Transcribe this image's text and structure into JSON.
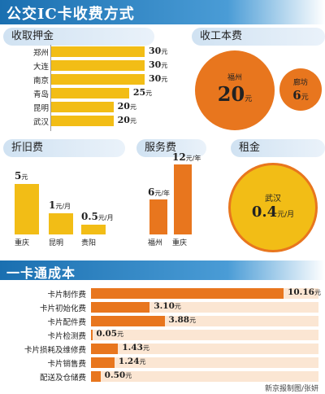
{
  "title": "公交IC卡收费方式",
  "colors": {
    "yellow": "#f2bd16",
    "orange": "#e8761e",
    "blue": "#1a6fb0",
    "pale_orange": "#fbe6d3"
  },
  "deposit": {
    "heading": "收取押金",
    "unit": "元",
    "items": [
      {
        "city": "郑州",
        "value": 30
      },
      {
        "city": "大连",
        "value": 30
      },
      {
        "city": "南京",
        "value": 30
      },
      {
        "city": "青岛",
        "value": 25
      },
      {
        "city": "昆明",
        "value": 20
      },
      {
        "city": "武汉",
        "value": 20
      }
    ]
  },
  "production_fee": {
    "heading": "收工本费",
    "unit": "元",
    "items": [
      {
        "city": "福州",
        "value": "20"
      },
      {
        "city": "廊坊",
        "value": "6"
      }
    ]
  },
  "depreciation": {
    "heading": "折旧费",
    "items": [
      {
        "city": "重庆",
        "value": "5",
        "unit": "元"
      },
      {
        "city": "昆明",
        "value": "1",
        "unit": "元/月"
      },
      {
        "city": "贵阳",
        "value": "0.5",
        "unit": "元/月"
      }
    ]
  },
  "service_fee": {
    "heading": "服务费",
    "items": [
      {
        "city": "福州",
        "value": "6",
        "unit": "元/年"
      },
      {
        "city": "重庆",
        "value": "12",
        "unit": "元/年"
      }
    ]
  },
  "rent": {
    "heading": "租金",
    "city": "武汉",
    "value": "0.4",
    "unit": "元/月"
  },
  "cost_section": {
    "heading": "一卡通成本",
    "unit": "元"
  },
  "credit": "新京报制图/张妍",
  "chart_data": [
    {
      "type": "bar",
      "title": "收取押金",
      "categories": [
        "郑州",
        "大连",
        "南京",
        "青岛",
        "昆明",
        "武汉"
      ],
      "values": [
        30,
        30,
        30,
        25,
        20,
        20
      ],
      "unit": "元"
    },
    {
      "type": "scatter",
      "title": "收工本费",
      "categories": [
        "福州",
        "廊坊"
      ],
      "values": [
        20,
        6
      ],
      "unit": "元"
    },
    {
      "type": "bar",
      "title": "折旧费",
      "categories": [
        "重庆",
        "昆明",
        "贵阳"
      ],
      "values": [
        5,
        1,
        0.5
      ]
    },
    {
      "type": "bar",
      "title": "服务费",
      "categories": [
        "福州",
        "重庆"
      ],
      "values": [
        6,
        12
      ],
      "unit": "元/年"
    },
    {
      "type": "scatter",
      "title": "租金",
      "categories": [
        "武汉"
      ],
      "values": [
        0.4
      ],
      "unit": "元/月"
    },
    {
      "type": "bar",
      "title": "一卡通成本",
      "categories": [
        "卡片制作费",
        "卡片初始化费",
        "卡片配件费",
        "卡片检测费",
        "卡片损耗及维修费",
        "卡片销售费",
        "配送及仓储费"
      ],
      "values": [
        10.16,
        3.1,
        3.88,
        0.05,
        1.43,
        1.24,
        0.5
      ],
      "value_labels": [
        "10.16",
        "3.10",
        "3.88",
        "0.05",
        "1.43",
        "1.24",
        "0.50"
      ],
      "unit": "元",
      "xlim": [
        0,
        12
      ]
    }
  ]
}
